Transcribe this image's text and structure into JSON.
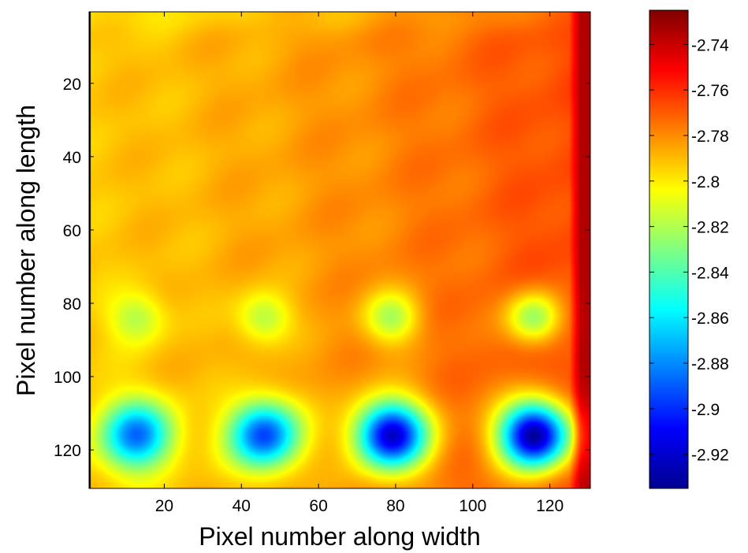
{
  "chart_data": {
    "type": "heatmap",
    "title": "",
    "xlabel": "Pixel number along width",
    "ylabel": "Pixel number along length",
    "xlim": [
      0.5,
      130.5
    ],
    "ylim": [
      0.5,
      130.5
    ],
    "y_reversed": true,
    "grid": false,
    "x_ticks": [
      20,
      40,
      60,
      80,
      100,
      120
    ],
    "y_ticks": [
      20,
      40,
      60,
      80,
      100,
      120
    ],
    "x_tick_labels": [
      "20",
      "40",
      "60",
      "80",
      "100",
      "120"
    ],
    "y_tick_labels": [
      "20",
      "40",
      "60",
      "80",
      "100",
      "120"
    ],
    "colormap": "jet",
    "color_range": [
      -2.935,
      -2.725
    ],
    "colorbar_ticks": [
      -2.74,
      -2.76,
      -2.78,
      -2.8,
      -2.82,
      -2.84,
      -2.86,
      -2.88,
      -2.9,
      -2.92
    ],
    "colorbar_tick_labels": [
      "-2.74",
      "-2.76",
      "-2.78",
      "-2.8",
      "-2.82",
      "-2.84",
      "-2.86",
      "-2.88",
      "-2.9",
      "-2.92"
    ],
    "background": {
      "left_edge_value": -2.792,
      "right_edge_value": -2.765,
      "right_column_value": -2.735
    },
    "features": [
      {
        "x": 13,
        "y": 84,
        "min_value": -2.82
      },
      {
        "x": 46,
        "y": 84,
        "min_value": -2.82
      },
      {
        "x": 79,
        "y": 84,
        "min_value": -2.82
      },
      {
        "x": 116,
        "y": 84,
        "min_value": -2.825
      },
      {
        "x": 13,
        "y": 116,
        "min_value": -2.885
      },
      {
        "x": 46,
        "y": 116,
        "min_value": -2.895
      },
      {
        "x": 79,
        "y": 116,
        "min_value": -2.92
      },
      {
        "x": 116,
        "y": 116,
        "min_value": -2.93
      }
    ]
  }
}
